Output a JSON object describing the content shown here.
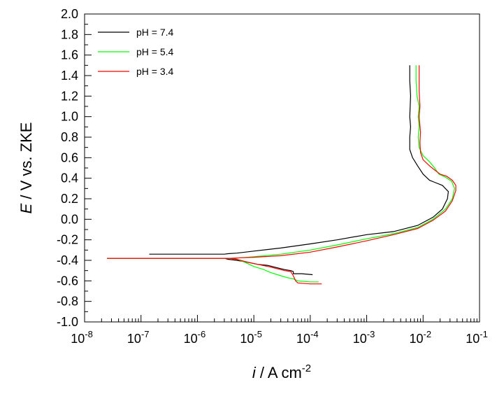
{
  "chart_data": {
    "type": "line",
    "x_scale": "log",
    "xlim": [
      1e-08,
      0.1
    ],
    "ylim": [
      -1.0,
      2.0
    ],
    "xlabel": {
      "italic": "i",
      "text": " / A cm",
      "superscript": "-2"
    },
    "ylabel": {
      "italic": "E",
      "text": " / V vs. ZKE"
    },
    "x_ticks": [
      {
        "base": "10",
        "exp": "-8",
        "value": 1e-08
      },
      {
        "base": "10",
        "exp": "-7",
        "value": 1e-07
      },
      {
        "base": "10",
        "exp": "-6",
        "value": 1e-06
      },
      {
        "base": "10",
        "exp": "-5",
        "value": 1e-05
      },
      {
        "base": "10",
        "exp": "-4",
        "value": 0.0001
      },
      {
        "base": "10",
        "exp": "-3",
        "value": 0.001
      },
      {
        "base": "10",
        "exp": "-2",
        "value": 0.01
      },
      {
        "base": "10",
        "exp": "-1",
        "value": 0.1
      }
    ],
    "y_ticks": [
      {
        "label": "2.0",
        "value": 2.0
      },
      {
        "label": "1.8",
        "value": 1.8
      },
      {
        "label": "1.6",
        "value": 1.6
      },
      {
        "label": "1.4",
        "value": 1.4
      },
      {
        "label": "1.2",
        "value": 1.2
      },
      {
        "label": "1.0",
        "value": 1.0
      },
      {
        "label": "0.8",
        "value": 0.8
      },
      {
        "label": "0.6",
        "value": 0.6
      },
      {
        "label": "0.4",
        "value": 0.4
      },
      {
        "label": "0.2",
        "value": 0.2
      },
      {
        "label": "0.0",
        "value": 0.0
      },
      {
        "label": "-0.2",
        "value": -0.2
      },
      {
        "label": "-0.4",
        "value": -0.4
      },
      {
        "label": "-0.6",
        "value": -0.6
      },
      {
        "label": "-0.8",
        "value": -0.8
      },
      {
        "label": "-1.0",
        "value": -1.0
      }
    ],
    "grid": false,
    "legend_position": "top-left",
    "series": [
      {
        "name": "pH = 7.4",
        "color": "#000000",
        "points": [
          [
            1.4e-07,
            -0.34
          ],
          [
            1e-06,
            -0.34
          ],
          [
            3e-06,
            -0.34
          ],
          [
            3.5e-06,
            -0.335
          ],
          [
            5e-06,
            -0.33
          ],
          [
            1e-05,
            -0.31
          ],
          [
            3e-05,
            -0.28
          ],
          [
            0.0001,
            -0.24
          ],
          [
            0.0003,
            -0.2
          ],
          [
            0.001,
            -0.15
          ],
          [
            0.003,
            -0.12
          ],
          [
            0.008,
            -0.06
          ],
          [
            0.015,
            0.02
          ],
          [
            0.022,
            0.1
          ],
          [
            0.027,
            0.2
          ],
          [
            0.028,
            0.27
          ],
          [
            0.022,
            0.33
          ],
          [
            0.016,
            0.36
          ],
          [
            0.013,
            0.38
          ],
          [
            0.01,
            0.44
          ],
          [
            0.008,
            0.52
          ],
          [
            0.0065,
            0.6
          ],
          [
            0.0058,
            0.68
          ],
          [
            0.0058,
            0.8
          ],
          [
            0.006,
            0.9
          ],
          [
            0.0058,
            1.0
          ],
          [
            0.006,
            1.2
          ],
          [
            0.0058,
            1.35
          ],
          [
            0.0058,
            1.5
          ]
        ],
        "cathodic": [
          [
            2.5e-08,
            -0.38
          ],
          [
            1e-07,
            -0.38
          ],
          [
            1e-06,
            -0.38
          ],
          [
            3e-06,
            -0.38
          ],
          [
            3.5e-06,
            -0.39
          ],
          [
            5e-06,
            -0.4
          ],
          [
            8e-06,
            -0.42
          ],
          [
            1.2e-05,
            -0.44
          ],
          [
            1.8e-05,
            -0.45
          ],
          [
            2.5e-05,
            -0.47
          ],
          [
            3.5e-05,
            -0.49
          ],
          [
            4.5e-05,
            -0.5
          ],
          [
            5e-05,
            -0.51
          ],
          [
            5e-05,
            -0.53
          ],
          [
            7e-05,
            -0.53
          ],
          [
            0.00011,
            -0.54
          ]
        ]
      },
      {
        "name": "pH = 5.4",
        "color": "#00ff00",
        "points": [
          [
            3.8e-06,
            -0.38
          ],
          [
            6e-06,
            -0.375
          ],
          [
            1e-05,
            -0.365
          ],
          [
            3e-05,
            -0.34
          ],
          [
            0.0001,
            -0.3
          ],
          [
            0.0003,
            -0.25
          ],
          [
            0.001,
            -0.19
          ],
          [
            0.003,
            -0.14
          ],
          [
            0.008,
            -0.08
          ],
          [
            0.015,
            0.0
          ],
          [
            0.025,
            0.1
          ],
          [
            0.033,
            0.2
          ],
          [
            0.036,
            0.3
          ],
          [
            0.032,
            0.37
          ],
          [
            0.025,
            0.41
          ],
          [
            0.019,
            0.44
          ],
          [
            0.016,
            0.5
          ],
          [
            0.013,
            0.56
          ],
          [
            0.01,
            0.62
          ],
          [
            0.0085,
            0.7
          ],
          [
            0.0082,
            0.8
          ],
          [
            0.0085,
            0.9
          ],
          [
            0.0082,
            1.0
          ],
          [
            0.0085,
            1.1
          ],
          [
            0.0078,
            1.2
          ],
          [
            0.0075,
            1.35
          ],
          [
            0.0075,
            1.5
          ]
        ],
        "cathodic": [
          [
            2.5e-08,
            -0.38
          ],
          [
            1e-06,
            -0.38
          ],
          [
            3.8e-06,
            -0.38
          ],
          [
            5e-06,
            -0.39
          ],
          [
            7e-06,
            -0.42
          ],
          [
            1e-05,
            -0.46
          ],
          [
            1.5e-05,
            -0.49
          ],
          [
            2e-05,
            -0.52
          ],
          [
            3e-05,
            -0.55
          ],
          [
            4e-05,
            -0.57
          ],
          [
            5e-05,
            -0.58
          ],
          [
            6e-05,
            -0.6
          ],
          [
            8e-05,
            -0.605
          ],
          [
            0.0001,
            -0.61
          ],
          [
            0.00014,
            -0.61
          ]
        ]
      },
      {
        "name": "pH = 3.4",
        "color": "#ff0000",
        "points": [
          [
            2.5e-08,
            -0.38
          ],
          [
            1e-06,
            -0.38
          ],
          [
            3.8e-06,
            -0.38
          ],
          [
            6e-06,
            -0.375
          ],
          [
            1e-05,
            -0.37
          ],
          [
            3e-05,
            -0.355
          ],
          [
            0.0001,
            -0.32
          ],
          [
            0.0003,
            -0.27
          ],
          [
            0.001,
            -0.21
          ],
          [
            0.003,
            -0.15
          ],
          [
            0.008,
            -0.09
          ],
          [
            0.015,
            -0.01
          ],
          [
            0.025,
            0.08
          ],
          [
            0.033,
            0.18
          ],
          [
            0.038,
            0.28
          ],
          [
            0.038,
            0.33
          ],
          [
            0.033,
            0.38
          ],
          [
            0.026,
            0.42
          ],
          [
            0.02,
            0.44
          ],
          [
            0.016,
            0.48
          ],
          [
            0.013,
            0.52
          ],
          [
            0.01,
            0.58
          ],
          [
            0.009,
            0.65
          ],
          [
            0.0088,
            0.75
          ],
          [
            0.009,
            0.85
          ],
          [
            0.0085,
            1.0
          ],
          [
            0.0088,
            1.1
          ],
          [
            0.0085,
            1.25
          ],
          [
            0.0085,
            1.5
          ]
        ],
        "cathodic": [
          [
            3.8e-06,
            -0.38
          ],
          [
            5e-06,
            -0.39
          ],
          [
            8e-06,
            -0.42
          ],
          [
            1.2e-05,
            -0.44
          ],
          [
            1.8e-05,
            -0.46
          ],
          [
            2.5e-05,
            -0.48
          ],
          [
            3.5e-05,
            -0.5
          ],
          [
            4.5e-05,
            -0.51
          ],
          [
            5e-05,
            -0.55
          ],
          [
            5.5e-05,
            -0.6
          ],
          [
            6e-05,
            -0.62
          ],
          [
            0.0001,
            -0.63
          ],
          [
            0.00016,
            -0.63
          ]
        ]
      }
    ]
  }
}
